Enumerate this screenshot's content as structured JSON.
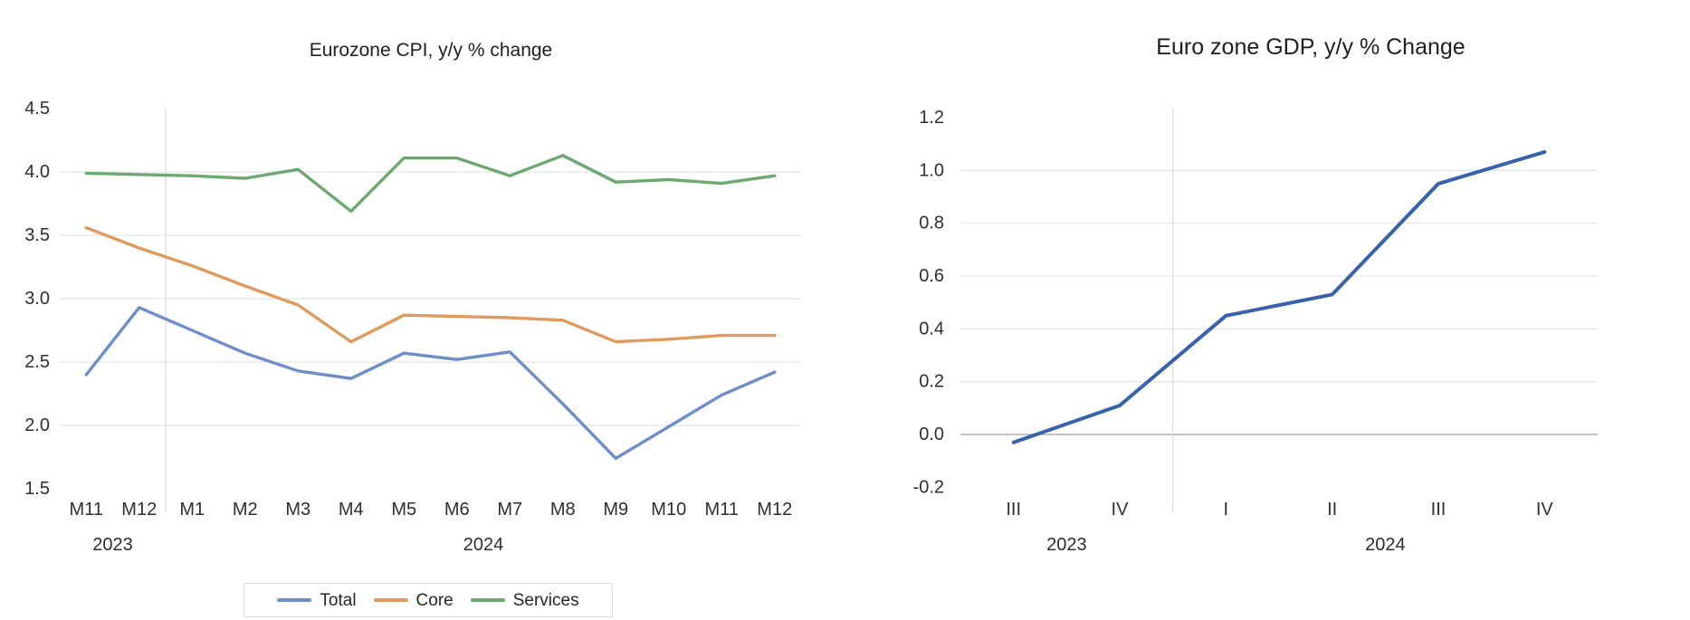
{
  "page": {
    "background_color": "#FFFFFF"
  },
  "chart_data": [
    {
      "id": "cpi",
      "type": "line",
      "title": "Eurozone CPI, y/y % change",
      "categories": [
        "M11",
        "M12",
        "M1",
        "M2",
        "M3",
        "M4",
        "M5",
        "M6",
        "M7",
        "M8",
        "M9",
        "M10",
        "M11",
        "M12"
      ],
      "category_year_groups": [
        {
          "label": "2023",
          "from": 0,
          "to": 1
        },
        {
          "label": "2024",
          "from": 2,
          "to": 13
        }
      ],
      "series": [
        {
          "name": "Total",
          "color": "#6D8EC9",
          "values": [
            2.4,
            2.93,
            2.75,
            2.57,
            2.43,
            2.37,
            2.57,
            2.52,
            2.58,
            2.17,
            1.74,
            1.99,
            2.24,
            2.42
          ]
        },
        {
          "name": "Core",
          "color": "#DF9A5E",
          "values": [
            3.56,
            3.4,
            3.26,
            3.1,
            2.95,
            2.66,
            2.87,
            2.86,
            2.85,
            2.83,
            2.66,
            2.68,
            2.71,
            2.71
          ]
        },
        {
          "name": "Services",
          "color": "#6CA96F",
          "values": [
            3.99,
            3.98,
            3.97,
            3.95,
            4.02,
            3.69,
            4.11,
            4.11,
            3.97,
            4.13,
            3.92,
            3.94,
            3.91,
            3.97
          ]
        }
      ],
      "ylim": [
        1.5,
        4.5
      ],
      "ytick_labels": [
        "4.5",
        "4.0",
        "3.5",
        "3.0",
        "2.5",
        "2.0",
        "1.5"
      ],
      "gridline_values": [
        2.0,
        2.5,
        3.0,
        3.5,
        4.0
      ],
      "grid_on": true,
      "legend_position": "bottom",
      "legend_entries": [
        "Total",
        "Core",
        "Services"
      ],
      "grid_color": "#E4E4E4",
      "separator_color": "#DCDCDC",
      "tick_text_color": "#2E2E2E"
    },
    {
      "id": "gdp",
      "type": "line",
      "title": "Euro zone GDP, y/y % Change",
      "categories": [
        "III",
        "IV",
        "I",
        "II",
        "III",
        "IV"
      ],
      "category_year_groups": [
        {
          "label": "2023",
          "from": 0,
          "to": 1
        },
        {
          "label": "2024",
          "from": 2,
          "to": 5
        }
      ],
      "series": [
        {
          "name": "GDP",
          "color": "#3663AC",
          "values": [
            -0.03,
            0.11,
            0.45,
            0.53,
            0.95,
            1.07
          ]
        }
      ],
      "ylim": [
        -0.2,
        1.2
      ],
      "ytick_labels": [
        "1.2",
        "1.0",
        "0.8",
        "0.6",
        "0.4",
        "0.2",
        "0.0",
        "-0.2"
      ],
      "gridline_values": [
        0.2,
        0.4,
        0.6,
        0.8,
        1.0
      ],
      "zero_axis_color": "#A8A8A8",
      "grid_on": true,
      "legend_position": "none",
      "grid_color": "#E4E4E4",
      "separator_color": "#DCDCDC",
      "tick_text_color": "#2E2E2E"
    }
  ]
}
